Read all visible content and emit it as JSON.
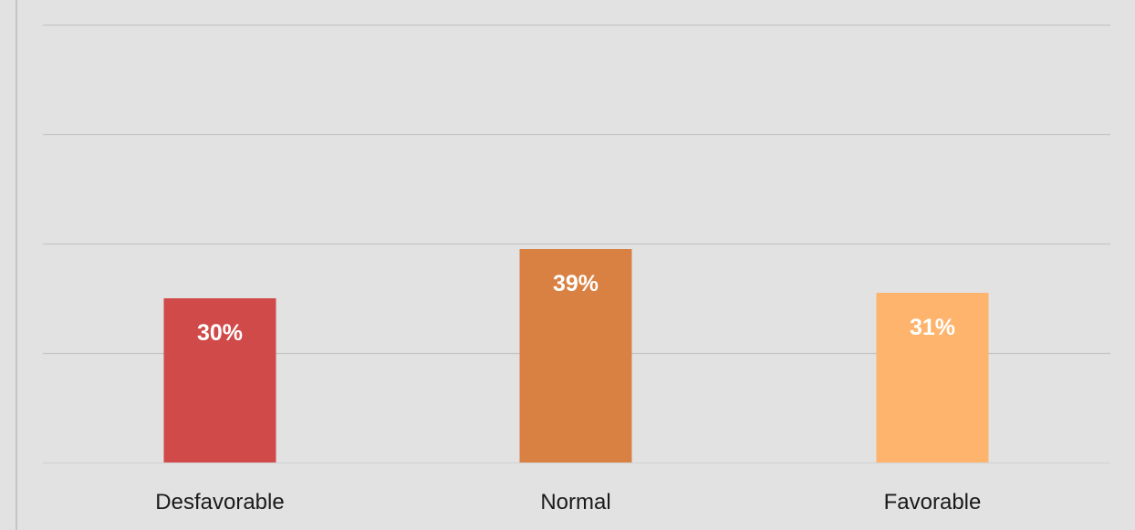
{
  "chart_data": {
    "type": "bar",
    "categories": [
      "Desfavorable",
      "Normal",
      "Favorable"
    ],
    "values": [
      30,
      39,
      31
    ],
    "data_labels": [
      "30%",
      "39%",
      "31%"
    ],
    "colors": [
      "#d14a4a",
      "#d98143",
      "#feb46c"
    ],
    "ylim": [
      0,
      80
    ],
    "gridlines": [
      0,
      20,
      40,
      60,
      80
    ],
    "grid": true,
    "label_color": "#ffffff",
    "grid_color": "#c6c6c6"
  }
}
